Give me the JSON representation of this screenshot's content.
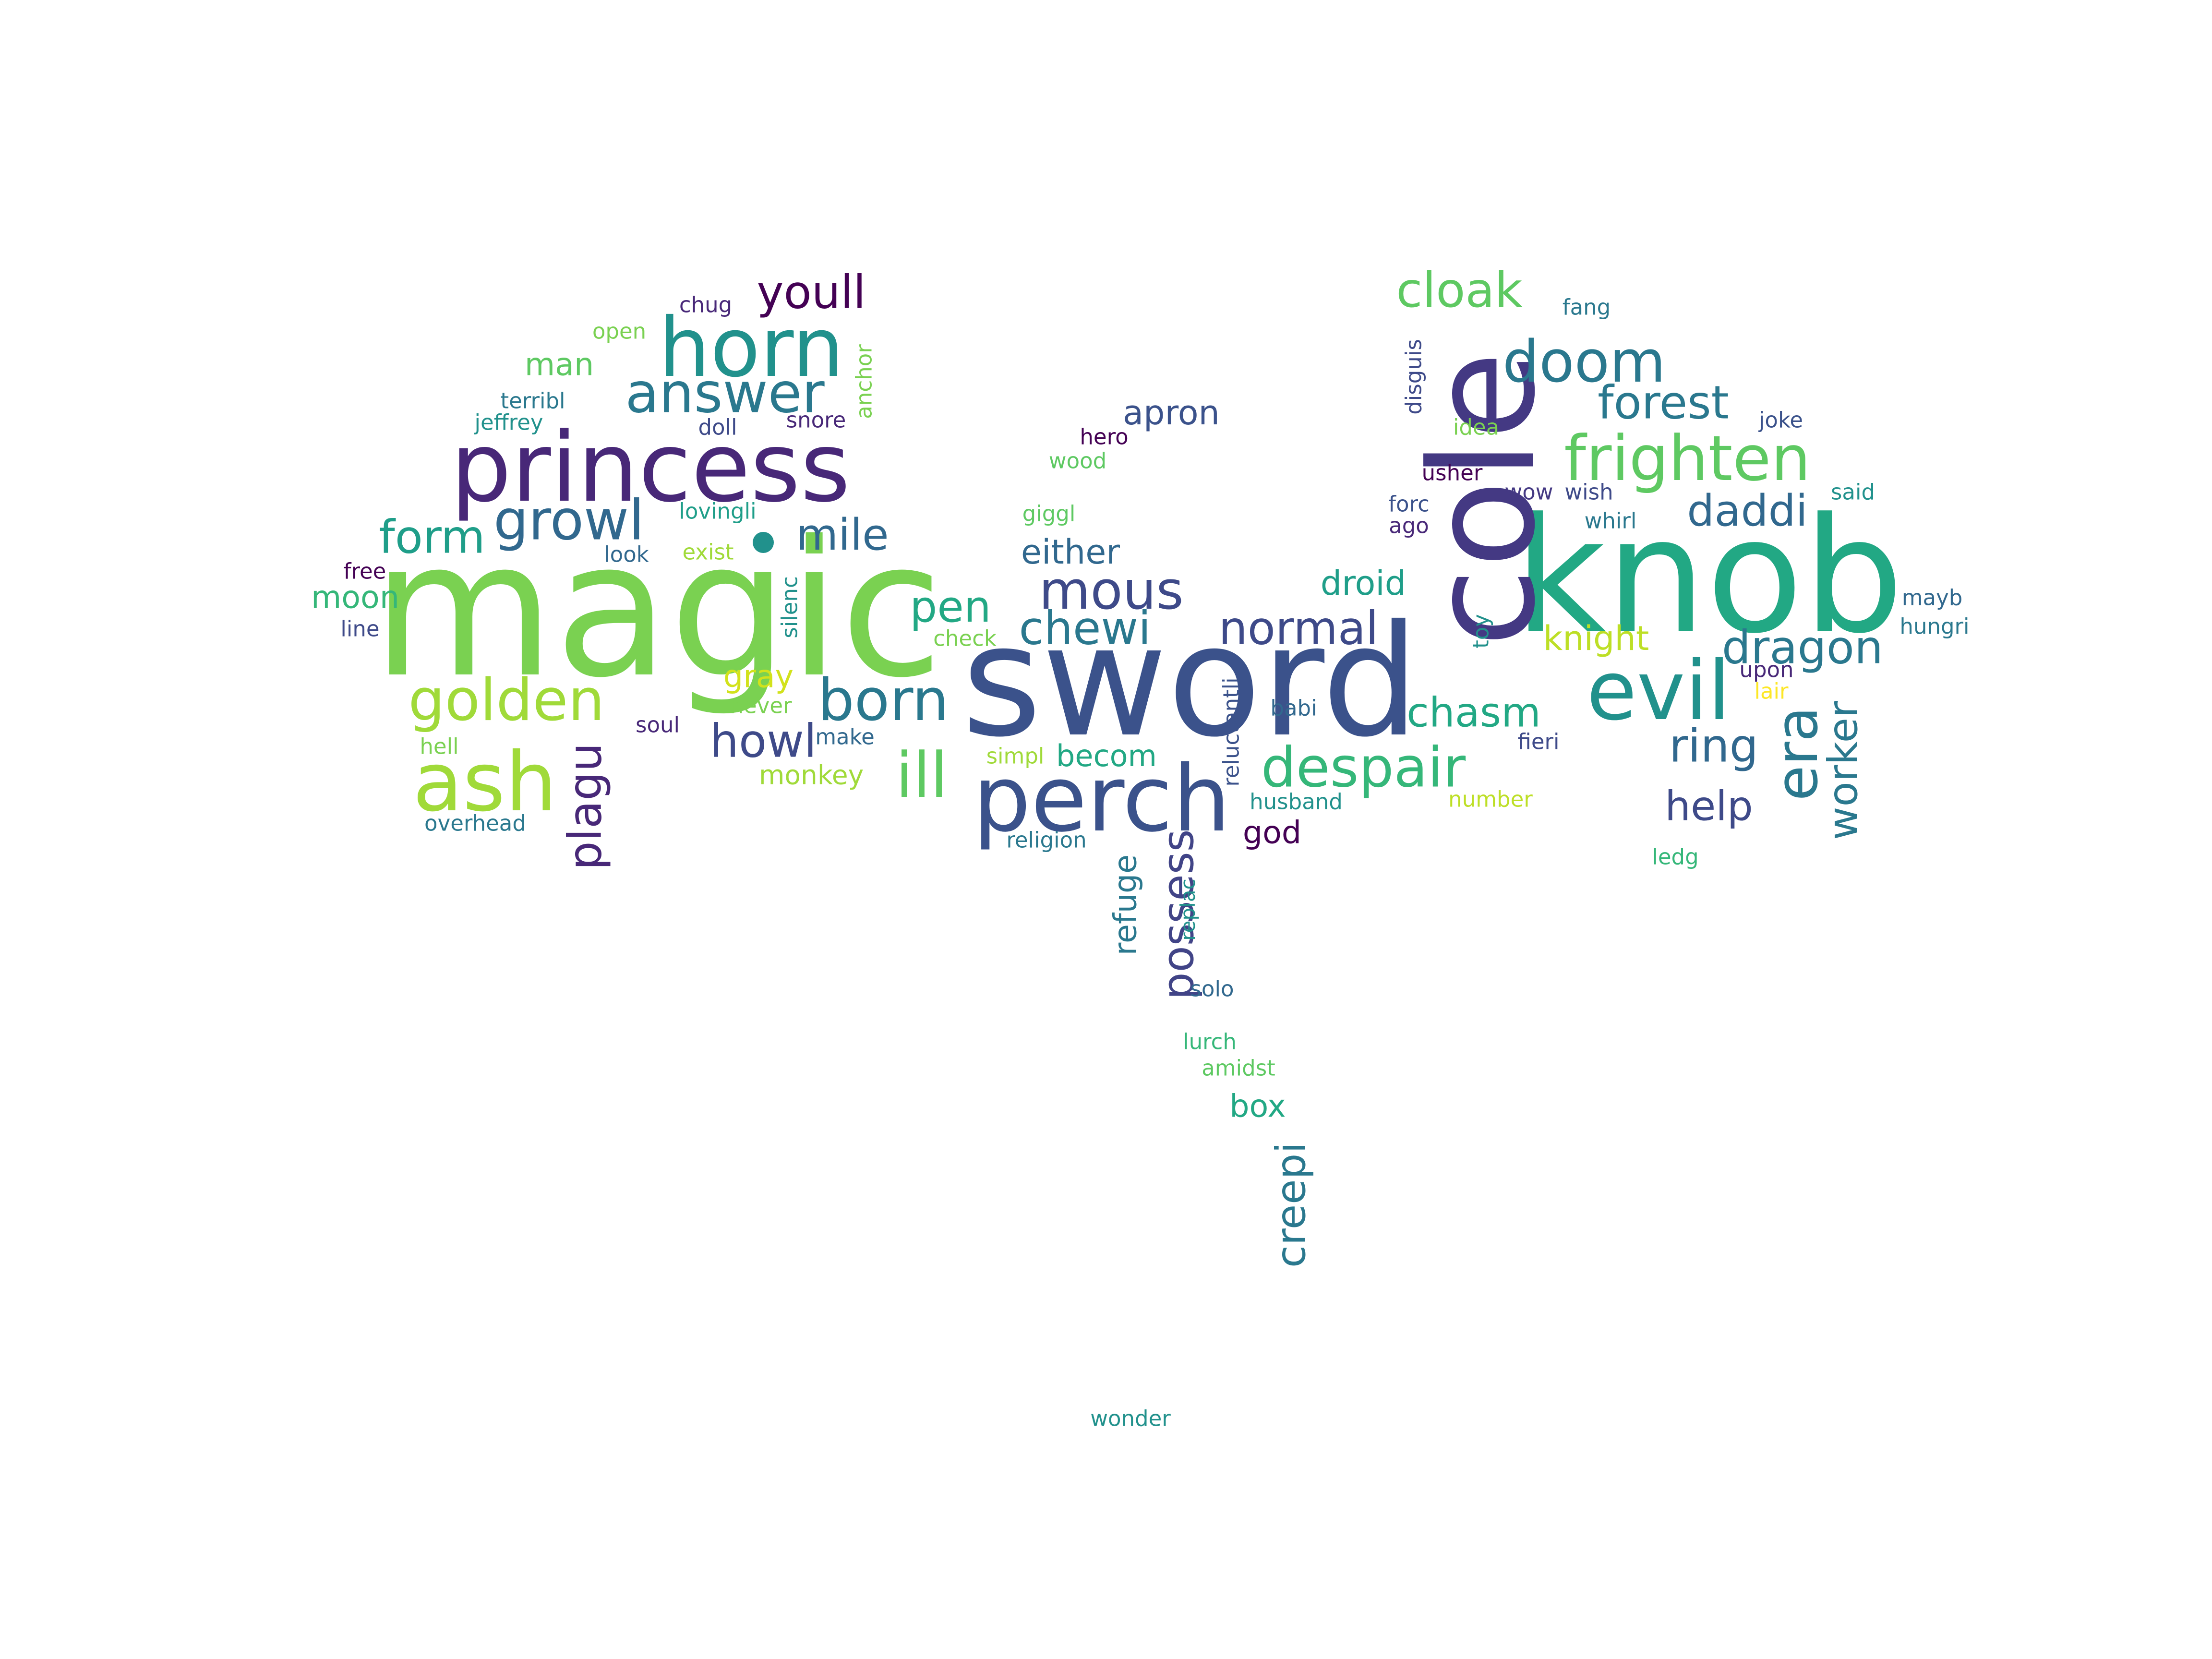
{
  "words": [
    {
      "text": "magic",
      "color": "#7ad151"
    },
    {
      "text": "sword",
      "color": "#3b528b"
    },
    {
      "text": "knob",
      "color": "#22a884"
    },
    {
      "text": "cole",
      "color": "#443983"
    },
    {
      "text": "princess",
      "color": "#482878"
    },
    {
      "text": "perch",
      "color": "#3b528b"
    },
    {
      "text": "horn",
      "color": "#21918c"
    },
    {
      "text": "evil",
      "color": "#21918c"
    },
    {
      "text": "ash",
      "color": "#a0da39"
    },
    {
      "text": "frighten",
      "color": "#5ec962"
    },
    {
      "text": "golden",
      "color": "#a0da39"
    },
    {
      "text": "born",
      "color": "#2a788e"
    },
    {
      "text": "answer",
      "color": "#2a788e"
    },
    {
      "text": "doom",
      "color": "#2a788e"
    },
    {
      "text": "growl",
      "color": "#31688e"
    },
    {
      "text": "ill",
      "color": "#5ec962"
    },
    {
      "text": "despair",
      "color": "#35b779"
    },
    {
      "text": "era",
      "color": "#2a788e"
    },
    {
      "text": "mous",
      "color": "#3e4a89"
    },
    {
      "text": "form",
      "color": "#1f9e89"
    },
    {
      "text": "cloak",
      "color": "#5ec962"
    },
    {
      "text": "youll",
      "color": "#440154"
    },
    {
      "text": "forest",
      "color": "#2a788e"
    },
    {
      "text": "plagu",
      "color": "#482878"
    },
    {
      "text": "chasm",
      "color": "#22a884"
    },
    {
      "text": "normal",
      "color": "#3e4a89"
    },
    {
      "text": "dragon",
      "color": "#2a788e"
    },
    {
      "text": "worker",
      "color": "#2a788e"
    },
    {
      "text": "ring",
      "color": "#31688e"
    },
    {
      "text": "daddi",
      "color": "#31688e"
    },
    {
      "text": "chewi",
      "color": "#2a788e"
    },
    {
      "text": "howl",
      "color": "#3e4a89"
    },
    {
      "text": "mile",
      "color": "#31688e"
    },
    {
      "text": "pen",
      "color": "#22a884"
    },
    {
      "text": "possess",
      "color": "#414487"
    },
    {
      "text": "creepi",
      "color": "#2a788e"
    },
    {
      "text": "help",
      "color": "#3e4a89"
    },
    {
      "text": "knight",
      "color": "#bddf26"
    },
    {
      "text": "droid",
      "color": "#1f9e89"
    },
    {
      "text": "either",
      "color": "#31688e"
    },
    {
      "text": "apron",
      "color": "#3b528b"
    },
    {
      "text": "man",
      "color": "#5ec962"
    },
    {
      "text": "moon",
      "color": "#35b779"
    },
    {
      "text": "gray",
      "color": "#d2e21b"
    },
    {
      "text": "becom",
      "color": "#22a884"
    },
    {
      "text": "god",
      "color": "#440154"
    },
    {
      "text": "refuge",
      "color": "#2a788e"
    },
    {
      "text": "box",
      "color": "#22a884"
    },
    {
      "text": "monkey",
      "color": "#a0da39"
    },
    {
      "text": "chug",
      "color": "#482878"
    },
    {
      "text": "open",
      "color": "#7ad151"
    },
    {
      "text": "terribl",
      "color": "#2a788e"
    },
    {
      "text": "jeffrey",
      "color": "#21918c"
    },
    {
      "text": "doll",
      "color": "#3e4a89"
    },
    {
      "text": "snore",
      "color": "#482878"
    },
    {
      "text": "anchor",
      "color": "#7ad151"
    },
    {
      "text": "lovingli",
      "color": "#1f9e89"
    },
    {
      "text": "look",
      "color": "#31688e"
    },
    {
      "text": "exist",
      "color": "#a0da39"
    },
    {
      "text": "free",
      "color": "#440154"
    },
    {
      "text": "line",
      "color": "#3e4a89"
    },
    {
      "text": "silenc",
      "color": "#21918c"
    },
    {
      "text": "hell",
      "color": "#7ad151"
    },
    {
      "text": "soul",
      "color": "#482878"
    },
    {
      "text": "never",
      "color": "#7ad151"
    },
    {
      "text": "make",
      "color": "#31688e"
    },
    {
      "text": "overhead",
      "color": "#2a788e"
    },
    {
      "text": "simpl",
      "color": "#a0da39"
    },
    {
      "text": "check",
      "color": "#7ad151"
    },
    {
      "text": "giggl",
      "color": "#5ec962"
    },
    {
      "text": "hero",
      "color": "#440154"
    },
    {
      "text": "wood",
      "color": "#5ec962"
    },
    {
      "text": "religion",
      "color": "#2a788e"
    },
    {
      "text": "husband",
      "color": "#21918c"
    },
    {
      "text": "reluctantli",
      "color": "#3b528b"
    },
    {
      "text": "babi",
      "color": "#31688e"
    },
    {
      "text": "replac",
      "color": "#21918c"
    },
    {
      "text": "solo",
      "color": "#31688e"
    },
    {
      "text": "lurch",
      "color": "#35b779"
    },
    {
      "text": "amidst",
      "color": "#5ec962"
    },
    {
      "text": "wonder",
      "color": "#21918c"
    },
    {
      "text": "disguis",
      "color": "#3e4a89"
    },
    {
      "text": "idea",
      "color": "#7ad151"
    },
    {
      "text": "usher",
      "color": "#440154"
    },
    {
      "text": "forc",
      "color": "#3b528b"
    },
    {
      "text": "ago",
      "color": "#482878"
    },
    {
      "text": "wow",
      "color": "#443983"
    },
    {
      "text": "wish",
      "color": "#3e4a89"
    },
    {
      "text": "whirl",
      "color": "#2a788e"
    },
    {
      "text": "said",
      "color": "#21918c"
    },
    {
      "text": "fang",
      "color": "#2a788e"
    },
    {
      "text": "joke",
      "color": "#3b528b"
    },
    {
      "text": "toy",
      "color": "#21918c"
    },
    {
      "text": "upon",
      "color": "#482878"
    },
    {
      "text": "lair",
      "color": "#fde725"
    },
    {
      "text": "fieri",
      "color": "#3e4a89"
    },
    {
      "text": "number",
      "color": "#bddf26"
    },
    {
      "text": "ledg",
      "color": "#35b779"
    },
    {
      "text": "mayb",
      "color": "#31688e"
    },
    {
      "text": "hungri",
      "color": "#2a788e"
    }
  ]
}
